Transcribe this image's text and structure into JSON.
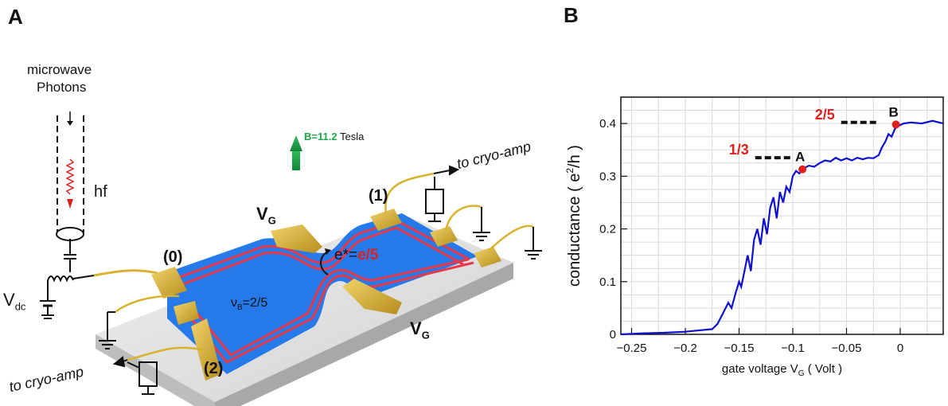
{
  "panel_a": {
    "letter": "A",
    "microwave_line1": "microwave",
    "microwave_line2": "Photons",
    "hf": "hf",
    "vdc": "V",
    "vdc_sub": "dc",
    "field": "B=11.2",
    "field_unit": "Tesla",
    "contact_0": "(0)",
    "contact_1": "(1)",
    "contact_2": "(2)",
    "gate_top": "V",
    "gate_bottom": "V",
    "gate_sub": "G",
    "to_cryo_top": "to cryo-amp",
    "to_cryo_bottom": "to cryo-amp",
    "charge_prefix": "e*=",
    "charge_value": "e/5",
    "filling": "ν",
    "filling_sub": "B",
    "filling_value": "=2/5",
    "colors": {
      "mesa": "#1a73e8",
      "channel": "#e8394a",
      "gold": "#d9b230",
      "arrow": "#1fa34a",
      "charge": "#e0201f"
    }
  },
  "panel_b": {
    "letter": "B",
    "chart_data": {
      "type": "line",
      "xlabel": "gate voltage V",
      "xlabel_sub": "G",
      "xlabel_unit": " ( Volt )",
      "ylabel": "conductance ( e",
      "ylabel_sup": "2",
      "ylabel_end": "/h )",
      "xlim": [
        -0.26,
        0.04
      ],
      "ylim": [
        0,
        0.45
      ],
      "x_ticks": [
        -0.25,
        -0.2,
        -0.15,
        -0.1,
        -0.05,
        0
      ],
      "x_tick_labels": [
        "−0.25",
        "−0.2",
        "−0.15",
        "−0.1",
        "−0.05",
        "0"
      ],
      "y_ticks": [
        0,
        0.1,
        0.2,
        0.3,
        0.4
      ],
      "y_tick_labels": [
        "0",
        "0.1",
        "0.2",
        "0.3",
        "0.4"
      ],
      "grid": true,
      "series": [
        {
          "color": "#1010d0",
          "x": [
            -0.26,
            -0.24,
            -0.22,
            -0.2,
            -0.185,
            -0.175,
            -0.17,
            -0.165,
            -0.16,
            -0.157,
            -0.153,
            -0.15,
            -0.148,
            -0.145,
            -0.142,
            -0.139,
            -0.136,
            -0.133,
            -0.13,
            -0.127,
            -0.124,
            -0.121,
            -0.118,
            -0.115,
            -0.112,
            -0.109,
            -0.106,
            -0.103,
            -0.1,
            -0.097,
            -0.094,
            -0.09,
            -0.085,
            -0.08,
            -0.075,
            -0.07,
            -0.065,
            -0.06,
            -0.055,
            -0.05,
            -0.045,
            -0.04,
            -0.035,
            -0.03,
            -0.025,
            -0.02,
            -0.017,
            -0.014,
            -0.011,
            -0.008,
            -0.005,
            -0.002,
            0.003,
            0.01,
            0.02,
            0.03,
            0.04
          ],
          "y": [
            0.0,
            0.002,
            0.003,
            0.005,
            0.008,
            0.01,
            0.02,
            0.04,
            0.06,
            0.05,
            0.08,
            0.1,
            0.09,
            0.12,
            0.15,
            0.12,
            0.18,
            0.2,
            0.17,
            0.22,
            0.19,
            0.24,
            0.26,
            0.22,
            0.27,
            0.25,
            0.28,
            0.27,
            0.3,
            0.31,
            0.305,
            0.315,
            0.32,
            0.318,
            0.325,
            0.33,
            0.328,
            0.335,
            0.33,
            0.334,
            0.33,
            0.335,
            0.332,
            0.335,
            0.334,
            0.34,
            0.355,
            0.365,
            0.38,
            0.375,
            0.39,
            0.395,
            0.4,
            0.402,
            0.4,
            0.405,
            0.4
          ]
        }
      ],
      "points": [
        {
          "label": "A",
          "x": -0.091,
          "y": 0.313,
          "color": "#e0201f"
        },
        {
          "label": "B",
          "x": -0.004,
          "y": 0.398,
          "color": "#e0201f"
        }
      ],
      "plateaus": [
        {
          "label": "1/3",
          "x_start": -0.135,
          "x_end": -0.1,
          "y": 0.335
        },
        {
          "label": "2/5",
          "x_start": -0.055,
          "x_end": -0.02,
          "y": 0.402
        }
      ]
    }
  }
}
